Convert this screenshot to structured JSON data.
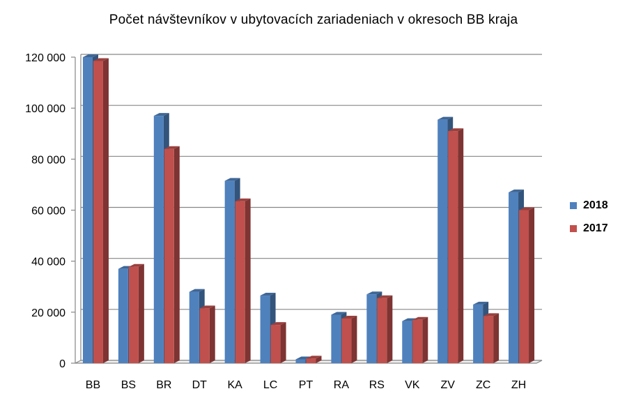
{
  "chart_data": {
    "type": "bar",
    "title": "Počet návštevníkov v ubytovacích zariadeniach v okresoch BB kraja",
    "xlabel": "",
    "ylabel": "",
    "categories": [
      "BB",
      "BS",
      "BR",
      "DT",
      "KA",
      "LC",
      "PT",
      "RA",
      "RS",
      "VK",
      "ZV",
      "ZC",
      "ZH"
    ],
    "series": [
      {
        "name": "2018",
        "color": "#4f81bd",
        "values": [
          120000,
          37000,
          97000,
          28000,
          71500,
          26500,
          1500,
          19000,
          27000,
          16500,
          95500,
          23000,
          67000
        ]
      },
      {
        "name": "2017",
        "color": "#c0504d",
        "values": [
          118500,
          37800,
          84000,
          21500,
          63500,
          15000,
          1800,
          17500,
          25500,
          17000,
          91000,
          18500,
          60000
        ]
      }
    ],
    "ylim": [
      0,
      120000
    ],
    "yticks": [
      0,
      20000,
      40000,
      60000,
      80000,
      100000,
      120000
    ],
    "ytick_labels": [
      "0",
      "20 000",
      "40 000",
      "60 000",
      "80 000",
      "100 000",
      "120 000"
    ],
    "grid": true,
    "legend_position": "right"
  }
}
